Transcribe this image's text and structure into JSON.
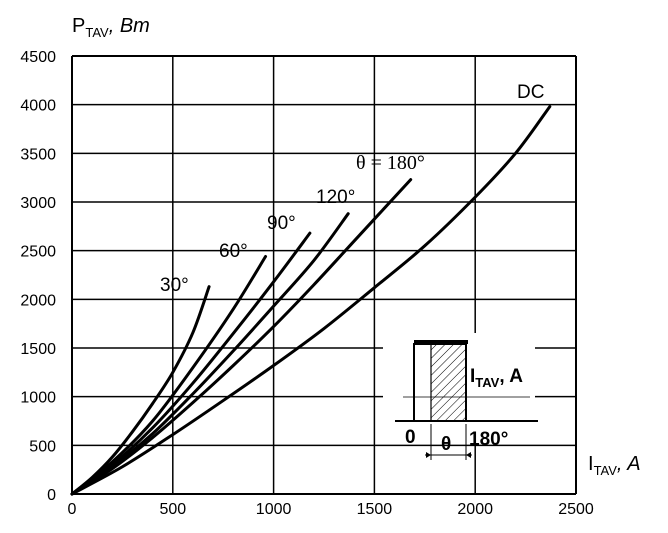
{
  "chart_data": {
    "type": "line",
    "ylabel": {
      "main": "P",
      "sub": "TAV",
      "unit": ", Bm"
    },
    "xlabel": {
      "main": "I",
      "sub": "TAV",
      "unit": ", A"
    },
    "xlim": [
      0,
      2500
    ],
    "ylim": [
      0,
      4500
    ],
    "x_ticks": [
      "0",
      "500",
      "1000",
      "1500",
      "2000",
      "2500"
    ],
    "y_ticks": [
      "0",
      "500",
      "1000",
      "1500",
      "2000",
      "2500",
      "3000",
      "3500",
      "4000",
      "4500"
    ],
    "grid": true,
    "series": [
      {
        "name": "30°",
        "x": [
          0,
          100,
          200,
          300,
          400,
          500,
          600,
          680
        ],
        "y": [
          0,
          170,
          380,
          640,
          930,
          1250,
          1660,
          2130
        ]
      },
      {
        "name": "60°",
        "x": [
          0,
          200,
          400,
          600,
          800,
          960
        ],
        "y": [
          0,
          330,
          750,
          1300,
          1900,
          2440
        ]
      },
      {
        "name": "90°",
        "x": [
          0,
          200,
          400,
          600,
          800,
          1000,
          1180
        ],
        "y": [
          0,
          300,
          680,
          1140,
          1650,
          2180,
          2680
        ]
      },
      {
        "name": "120°",
        "x": [
          0,
          200,
          400,
          600,
          800,
          1000,
          1200,
          1370
        ],
        "y": [
          0,
          280,
          620,
          1030,
          1470,
          1930,
          2400,
          2880
        ]
      },
      {
        "name": "θ = 180°",
        "x": [
          0,
          200,
          400,
          600,
          800,
          1000,
          1200,
          1400,
          1680
        ],
        "y": [
          0,
          260,
          580,
          940,
          1320,
          1720,
          2150,
          2600,
          3230
        ]
      },
      {
        "name": "DC",
        "x": [
          0,
          250,
          500,
          750,
          1000,
          1250,
          1500,
          1750,
          2000,
          2200,
          2370
        ],
        "y": [
          0,
          280,
          610,
          960,
          1320,
          1700,
          2120,
          2550,
          3050,
          3500,
          3980
        ]
      }
    ],
    "curve_labels": [
      "30°",
      "60°",
      "90°",
      "120°",
      "θ = 180°",
      "DC"
    ],
    "inset": {
      "current_label": "I",
      "current_sub": "TAV",
      "current_unit": ", A",
      "zero_label": "0",
      "theta_label": "θ",
      "end_label": "180°"
    }
  }
}
